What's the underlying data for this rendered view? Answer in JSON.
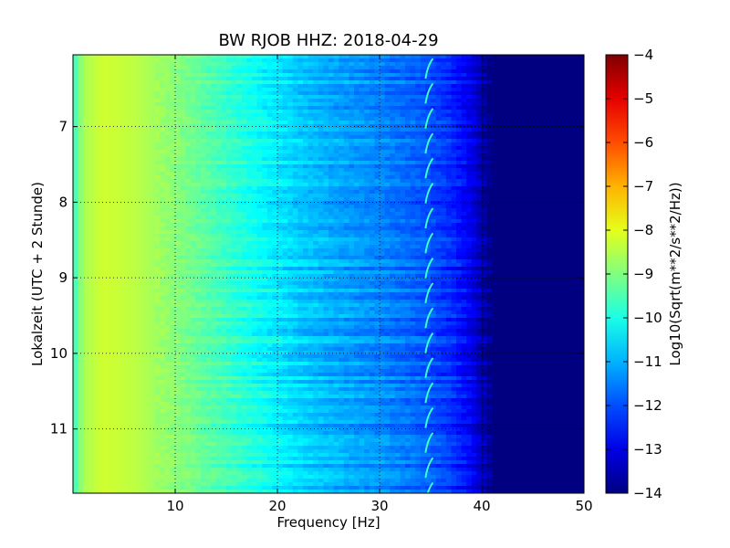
{
  "chart_data": {
    "type": "heatmap",
    "title": "BW RJOB HHZ: 2018-04-29",
    "xlabel": "Frequency [Hz]",
    "ylabel": "Lokalzeit (UTC + 2 Stunde)",
    "xlim": [
      0,
      50
    ],
    "ylim": [
      11.85,
      6.05
    ],
    "x_ticks": [
      10,
      20,
      30,
      40,
      50
    ],
    "y_ticks": [
      7,
      8,
      9,
      10,
      11
    ],
    "grid": true,
    "colormap": "jet",
    "colorbar": {
      "label": "Log10(Sqrt(m**2/s**2/Hz))",
      "range": [
        -14,
        -4
      ],
      "ticks": [
        -4,
        -5,
        -6,
        -7,
        -8,
        -9,
        -10,
        -11,
        -12,
        -13,
        -14
      ]
    },
    "profile": {
      "frequency_hz": [
        0,
        1,
        3,
        6,
        10,
        14,
        18,
        22,
        26,
        30,
        34,
        37,
        39,
        40,
        41,
        50
      ],
      "log10_amplitude": [
        -9.8,
        -8.6,
        -8.2,
        -8.4,
        -8.9,
        -9.5,
        -10.1,
        -10.7,
        -11.1,
        -11.4,
        -11.8,
        -12.3,
        -12.9,
        -13.5,
        -14,
        -14
      ]
    },
    "feature_note_freq_hz": 34.5
  }
}
